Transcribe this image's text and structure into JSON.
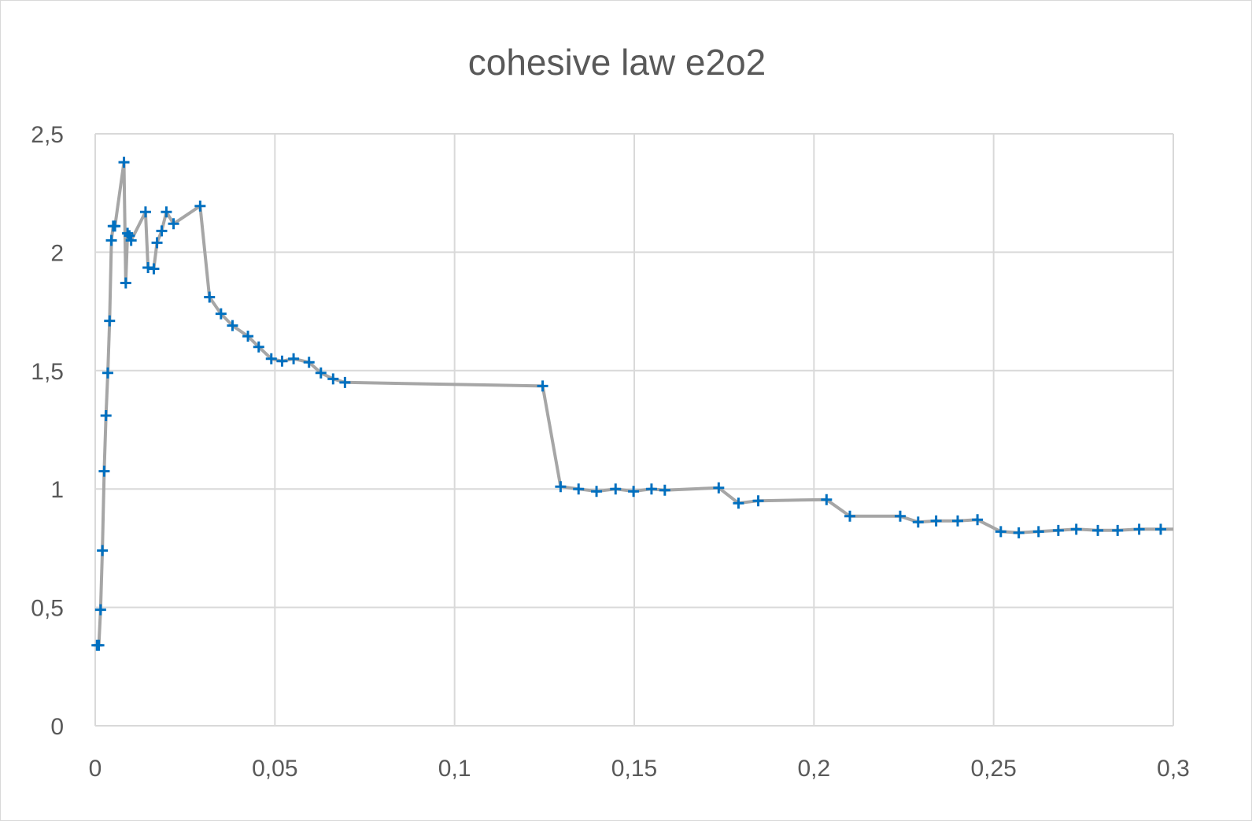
{
  "chart_data": {
    "type": "scatter",
    "title": "cohesive law e2o2",
    "xlabel": "",
    "ylabel": "",
    "xlim": [
      0,
      0.3
    ],
    "ylim": [
      0,
      2.5
    ],
    "x_ticks": [
      "0",
      "0,05",
      "0,1",
      "0,15",
      "0,2",
      "0,25",
      "0,3"
    ],
    "y_ticks": [
      "0",
      "0,5",
      "1",
      "1,5",
      "2",
      "2,5"
    ],
    "grid": true,
    "legend": "none",
    "colors": {
      "line": "#a6a6a6",
      "marker": "#0070c0",
      "grid": "#d9d9d9",
      "text": "#595959"
    },
    "series": [
      {
        "marker": "plus",
        "x": [
          0.0005,
          0.001,
          0.0015,
          0.002,
          0.0025,
          0.003,
          0.0035,
          0.004,
          0.0045,
          0.005,
          0.0055,
          0.008,
          0.0085,
          0.009,
          0.0095,
          0.01,
          0.014,
          0.0147,
          0.0163,
          0.0172,
          0.0185,
          0.0198,
          0.0218,
          0.0292,
          0.0318,
          0.035,
          0.0382,
          0.0425,
          0.0455,
          0.049,
          0.052,
          0.0552,
          0.0595,
          0.0628,
          0.0662,
          0.0695,
          0.1245,
          0.1295,
          0.1345,
          0.1395,
          0.1448,
          0.1498,
          0.1548,
          0.1585,
          0.1735,
          0.179,
          0.1845,
          0.2035,
          0.21,
          0.224,
          0.229,
          0.234,
          0.24,
          0.2455,
          0.252,
          0.257,
          0.2625,
          0.268,
          0.273,
          0.279,
          0.2845,
          0.2905,
          0.2965,
          0.3
        ],
        "y": [
          0.34,
          0.34,
          0.49,
          0.74,
          1.075,
          1.31,
          1.49,
          1.71,
          2.05,
          2.11,
          2.11,
          2.38,
          1.87,
          2.08,
          2.07,
          2.05,
          2.17,
          1.935,
          1.93,
          2.04,
          2.09,
          2.17,
          2.12,
          2.195,
          1.81,
          1.74,
          1.69,
          1.645,
          1.6,
          1.55,
          1.54,
          1.55,
          1.535,
          1.49,
          1.465,
          1.45,
          1.435,
          1.01,
          1.0,
          0.99,
          1.0,
          0.99,
          1.0,
          0.995,
          1.005,
          0.94,
          0.95,
          0.955,
          0.885,
          0.885,
          0.86,
          0.865,
          0.865,
          0.87,
          0.82,
          0.815,
          0.82,
          0.825,
          0.83,
          0.825,
          0.825,
          0.83,
          0.83,
          0.83
        ]
      }
    ]
  }
}
